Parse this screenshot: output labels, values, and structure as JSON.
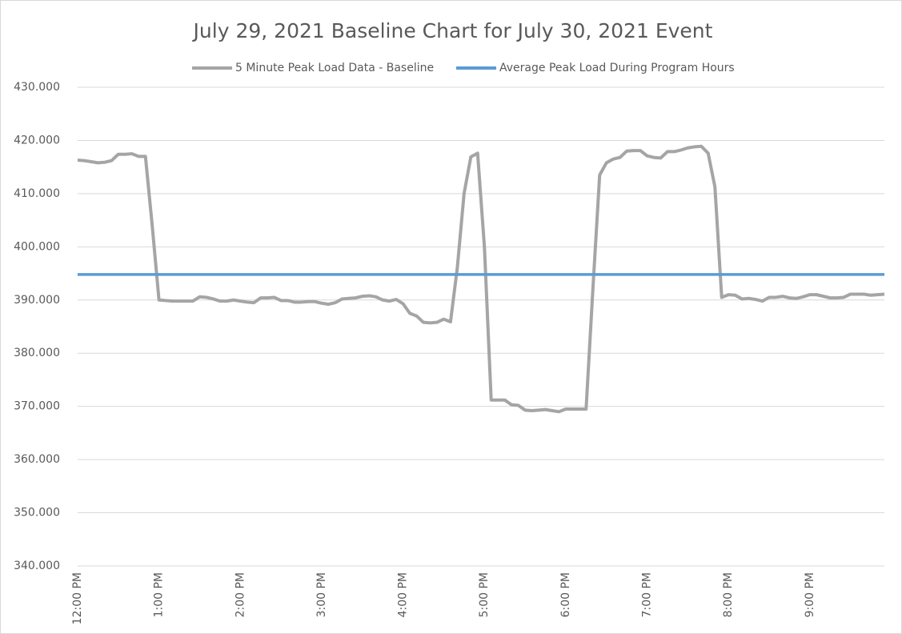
{
  "chart_data": {
    "type": "line",
    "title": "July 29, 2021 Baseline Chart for July 30, 2021 Event",
    "categories": [
      "12:00 PM",
      null,
      null,
      null,
      null,
      null,
      null,
      null,
      null,
      null,
      null,
      null,
      "1:00 PM",
      null,
      null,
      null,
      null,
      null,
      null,
      null,
      null,
      null,
      null,
      null,
      "2:00 PM",
      null,
      null,
      null,
      null,
      null,
      null,
      null,
      null,
      null,
      null,
      null,
      "3:00 PM",
      null,
      null,
      null,
      null,
      null,
      null,
      null,
      null,
      null,
      null,
      null,
      "4:00 PM",
      null,
      null,
      null,
      null,
      null,
      null,
      null,
      null,
      null,
      null,
      null,
      "5:00 PM",
      null,
      null,
      null,
      null,
      null,
      null,
      null,
      null,
      null,
      null,
      null,
      "6:00 PM",
      null,
      null,
      null,
      null,
      null,
      null,
      null,
      null,
      null,
      null,
      null,
      "7:00 PM",
      null,
      null,
      null,
      null,
      null,
      null,
      null,
      null,
      null,
      null,
      null,
      "8:00 PM",
      null,
      null,
      null,
      null,
      null,
      null,
      null,
      null,
      null,
      null,
      null,
      "9:00 PM",
      null,
      null,
      null,
      null,
      null,
      null,
      null,
      null,
      null,
      null,
      null
    ],
    "series": [
      {
        "name": "5 Minute Peak Load Data - Baseline",
        "color": "#a5a5a5",
        "values": [
          416.3,
          416.2,
          416.0,
          415.8,
          415.9,
          416.2,
          417.4,
          417.4,
          417.5,
          417.0,
          417.0,
          404.0,
          390.0,
          389.9,
          389.8,
          389.8,
          389.8,
          389.8,
          390.6,
          390.5,
          390.2,
          389.8,
          389.8,
          390.0,
          389.8,
          389.6,
          389.5,
          390.4,
          390.4,
          390.5,
          389.9,
          389.9,
          389.6,
          389.6,
          389.7,
          389.7,
          389.4,
          389.2,
          389.5,
          390.2,
          390.3,
          390.4,
          390.7,
          390.8,
          390.6,
          390.0,
          389.8,
          390.1,
          389.3,
          387.5,
          387.0,
          385.8,
          385.7,
          385.8,
          386.4,
          385.9,
          396.0,
          410.0,
          416.9,
          417.6,
          400.0,
          371.2,
          371.2,
          371.2,
          370.3,
          370.2,
          369.3,
          369.2,
          369.3,
          369.4,
          369.2,
          369.0,
          369.5,
          369.5,
          369.5,
          369.5,
          392.0,
          413.5,
          415.8,
          416.5,
          416.8,
          418.0,
          418.1,
          418.1,
          417.1,
          416.8,
          416.7,
          417.9,
          417.9,
          418.2,
          418.6,
          418.8,
          418.9,
          417.6,
          411.3,
          390.5,
          391.0,
          390.9,
          390.2,
          390.3,
          390.1,
          389.8,
          390.5,
          390.5,
          390.7,
          390.4,
          390.3,
          390.6,
          391.0,
          391.0,
          390.7,
          390.4,
          390.4,
          390.5,
          391.1,
          391.1,
          391.1,
          390.9,
          391.0,
          391.1
        ]
      },
      {
        "name": "Average Peak Load During Program Hours",
        "color": "#5b9bd5",
        "values": [
          394.8,
          394.8,
          394.8,
          394.8,
          394.8,
          394.8,
          394.8,
          394.8,
          394.8,
          394.8,
          394.8,
          394.8,
          394.8,
          394.8,
          394.8,
          394.8,
          394.8,
          394.8,
          394.8,
          394.8,
          394.8,
          394.8,
          394.8,
          394.8,
          394.8,
          394.8,
          394.8,
          394.8,
          394.8,
          394.8,
          394.8,
          394.8,
          394.8,
          394.8,
          394.8,
          394.8,
          394.8,
          394.8,
          394.8,
          394.8,
          394.8,
          394.8,
          394.8,
          394.8,
          394.8,
          394.8,
          394.8,
          394.8,
          394.8,
          394.8,
          394.8,
          394.8,
          394.8,
          394.8,
          394.8,
          394.8,
          394.8,
          394.8,
          394.8,
          394.8,
          394.8,
          394.8,
          394.8,
          394.8,
          394.8,
          394.8,
          394.8,
          394.8,
          394.8,
          394.8,
          394.8,
          394.8,
          394.8,
          394.8,
          394.8,
          394.8,
          394.8,
          394.8,
          394.8,
          394.8,
          394.8,
          394.8,
          394.8,
          394.8,
          394.8,
          394.8,
          394.8,
          394.8,
          394.8,
          394.8,
          394.8,
          394.8,
          394.8,
          394.8,
          394.8,
          394.8,
          394.8,
          394.8,
          394.8,
          394.8,
          394.8,
          394.8,
          394.8,
          394.8,
          394.8,
          394.8,
          394.8,
          394.8,
          394.8,
          394.8,
          394.8,
          394.8,
          394.8,
          394.8,
          394.8,
          394.8,
          394.8,
          394.8,
          394.8,
          394.8
        ]
      }
    ],
    "ylim": [
      340,
      430
    ],
    "yticks": [
      {
        "value": 340,
        "label": "340.000"
      },
      {
        "value": 350,
        "label": "350.000"
      },
      {
        "value": 360,
        "label": "360.000"
      },
      {
        "value": 370,
        "label": "370.000"
      },
      {
        "value": 380,
        "label": "380.000"
      },
      {
        "value": 390,
        "label": "390.000"
      },
      {
        "value": 400,
        "label": "400.000"
      },
      {
        "value": 410,
        "label": "410.000"
      },
      {
        "value": 420,
        "label": "420.000"
      },
      {
        "value": 430,
        "label": "430.000"
      }
    ],
    "grid": true,
    "legend": "top"
  }
}
